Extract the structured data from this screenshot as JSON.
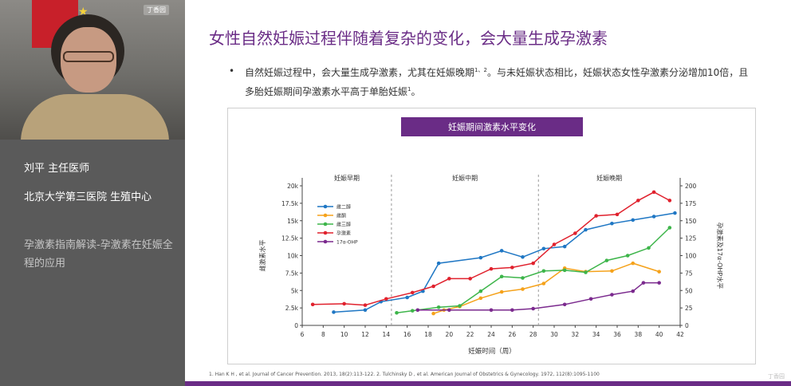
{
  "sidebar": {
    "video_badge": "丁香园",
    "speaker": "刘平  主任医师",
    "hospital": "北京大学第三医院  生殖中心",
    "lecture": "孕激素指南解读-孕激素在妊娠全程的应用"
  },
  "slide": {
    "title": "女性自然妊娠过程伴随着复杂的变化，会大量生成孕激素",
    "bullet_main": "自然妊娠过程中，会大量生成孕激素，尤其在妊娠晚期",
    "bullet_sup1": "1、2",
    "bullet_mid": "。与未妊娠状态相比，妊娠状态女性孕激素分泌增加10倍，且多胎妊娠期间孕激素水平高于单胎妊娠",
    "bullet_sup2": "1",
    "bullet_end": "。",
    "footnote": "1. Han K H , et al. Journal of Cancer Prevention. 2013, 18(2):113-122.     2. Tulchinsky D , et al. American Journal of Obstetrics & Gynecology. 1972, 112(8):1095-1100",
    "watermark": "丁香园"
  },
  "chart_data": {
    "type": "line",
    "title": "妊娠期间激素水平变化",
    "xlabel": "妊娠时间（周）",
    "ylabel_left": "雌激素水平",
    "ylabel_right": "孕激素及17α-OHP水平",
    "x_ticks": [
      "6",
      "8",
      "10",
      "12",
      "14",
      "16",
      "18",
      "20",
      "22",
      "24",
      "26",
      "28",
      "30",
      "32",
      "34",
      "36",
      "38",
      "40",
      "42"
    ],
    "x_range": [
      6,
      42
    ],
    "y_left_ticks": [
      "0",
      "2.5k",
      "5k",
      "7.5k",
      "10k",
      "12.5k",
      "15k",
      "17.5k",
      "20k"
    ],
    "y_left_range": [
      0,
      20000
    ],
    "y_right_ticks": [
      "0",
      "25",
      "50",
      "75",
      "100",
      "125",
      "150",
      "175",
      "200"
    ],
    "y_right_range": [
      0,
      200
    ],
    "grid": false,
    "legend_position": "top-left",
    "phases": [
      {
        "label": "妊娠早期",
        "x_start": 6,
        "x_end": 14.5
      },
      {
        "label": "妊娠中期",
        "x_start": 14.5,
        "x_end": 28.5
      },
      {
        "label": "妊娠晚期",
        "x_start": 28.5,
        "x_end": 42
      }
    ],
    "series": [
      {
        "name": "雌二醇",
        "color": "#1f77c4",
        "axis": "left",
        "x": [
          9,
          12,
          13.5,
          16,
          17.5,
          19,
          23,
          25,
          27,
          29,
          31,
          33,
          35.5,
          37.5,
          39.5,
          41.5
        ],
        "y": [
          1900,
          2200,
          3400,
          4000,
          4900,
          8900,
          9700,
          10700,
          9800,
          11000,
          11300,
          13700,
          14600,
          15100,
          15600,
          16100
        ]
      },
      {
        "name": "雌酮",
        "color": "#f5a21b",
        "axis": "left",
        "x": [
          18.5,
          19.5,
          21,
          23,
          25,
          27,
          29,
          31,
          33,
          35.5,
          37.5,
          40
        ],
        "y": [
          1700,
          2200,
          2700,
          3900,
          4800,
          5200,
          6000,
          8200,
          7700,
          7800,
          8900,
          7700
        ]
      },
      {
        "name": "雌三醇",
        "color": "#3db54a",
        "axis": "left",
        "x": [
          15,
          16.5,
          19,
          21,
          23,
          25,
          27,
          29,
          31,
          33,
          35,
          37,
          39,
          41
        ],
        "y": [
          1800,
          2100,
          2600,
          2800,
          4900,
          7000,
          6800,
          7800,
          7900,
          7600,
          9300,
          10000,
          11100,
          14000
        ]
      },
      {
        "name": "孕激素",
        "color": "#e0212d",
        "axis": "right",
        "x": [
          7,
          10,
          12,
          14,
          16.5,
          18.5,
          20,
          22,
          24,
          26,
          28,
          30,
          32,
          34,
          36,
          38,
          39.5,
          41
        ],
        "y": [
          30,
          31,
          29,
          38,
          47,
          56,
          67,
          67,
          81,
          83,
          89,
          116,
          132,
          157,
          159,
          179,
          191,
          179
        ]
      },
      {
        "name": "17α-OHP",
        "color": "#7b2a8e",
        "axis": "right",
        "x": [
          17,
          20,
          24,
          26,
          28,
          31,
          33.5,
          35.5,
          37.5,
          38.5,
          40
        ],
        "y": [
          22,
          22,
          22,
          22,
          24,
          30,
          38,
          44,
          49,
          61,
          61
        ]
      }
    ]
  }
}
